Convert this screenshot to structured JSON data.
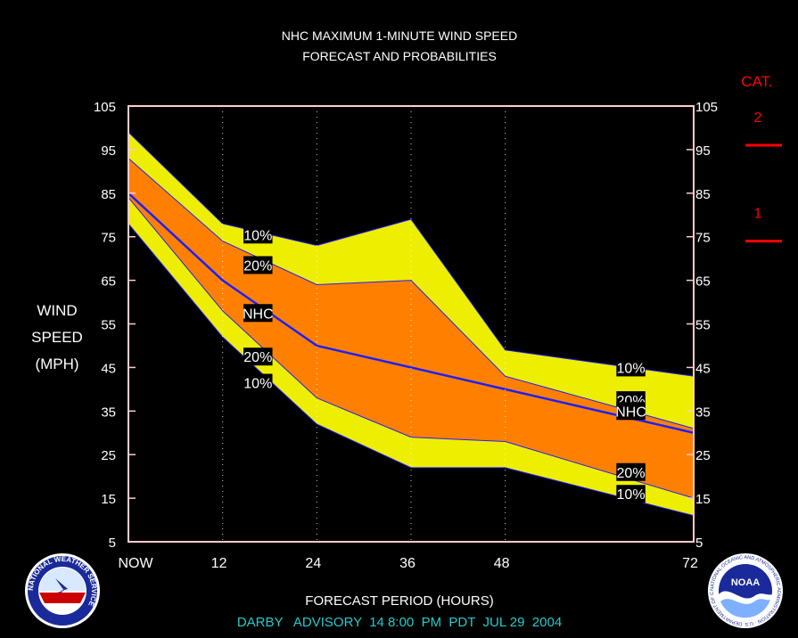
{
  "title_line1": "NHC MAXIMUM 1-MINUTE WIND SPEED",
  "title_line2": "FORECAST AND PROBABILITIES",
  "ylabel_lines": [
    "WIND",
    "SPEED",
    "(MPH)"
  ],
  "xlabel": "FORECAST PERIOD (HOURS)",
  "advisory": "DARBY   ADVISORY  14 8:00  PM  PDT  JUL 29  2004",
  "category_legend": {
    "header": "CAT.",
    "items": [
      {
        "label": "2",
        "threshold_mph": 96
      },
      {
        "label": "1",
        "threshold_mph": 74
      }
    ],
    "color": "#ff0000"
  },
  "colors": {
    "band_10": "#eeee00",
    "band_20": "#ff8000",
    "nhc_line": "#1f1fff",
    "frame": "#ffcccc",
    "grid": "#ffffff",
    "advisory_text": "#22cccc"
  },
  "chart_data": {
    "type": "area",
    "x": [
      0,
      12,
      24,
      36,
      48,
      72
    ],
    "xticks": [
      0,
      12,
      24,
      36,
      48,
      72
    ],
    "xtick_labels": [
      "NOW",
      "12",
      "24",
      "36",
      "48",
      "72"
    ],
    "xlim": [
      0,
      72
    ],
    "ylim": [
      5,
      105
    ],
    "yticks": [
      5,
      15,
      25,
      35,
      45,
      55,
      65,
      75,
      85,
      95,
      105
    ],
    "grid": "vertical dotted at forecast hours",
    "series": [
      {
        "name": "10%",
        "role": "upper-10",
        "values": [
          99,
          78,
          73,
          79,
          49,
          43
        ]
      },
      {
        "name": "20%",
        "role": "upper-20",
        "values": [
          93,
          74,
          64,
          65,
          43,
          31
        ]
      },
      {
        "name": "NHC",
        "role": "nhc",
        "values": [
          85,
          65,
          50,
          45,
          40,
          30
        ]
      },
      {
        "name": "20%",
        "role": "lower-20",
        "values": [
          84,
          58,
          38,
          29,
          28,
          15
        ]
      },
      {
        "name": "10%",
        "role": "lower-10",
        "values": [
          78,
          52,
          32,
          22,
          22,
          11
        ]
      }
    ],
    "annotations": [
      {
        "text": "10%",
        "x": 16.5,
        "y": 75.5
      },
      {
        "text": "20%",
        "x": 16.5,
        "y": 68.5
      },
      {
        "text": "NHC",
        "x": 16.5,
        "y": 57.5
      },
      {
        "text": "20%",
        "x": 16.5,
        "y": 47.5
      },
      {
        "text": "10%",
        "x": 16.5,
        "y": 41.5
      },
      {
        "text": "10%",
        "x": 64,
        "y": 45
      },
      {
        "text": "20%",
        "x": 64,
        "y": 37.5
      },
      {
        "text": "NHC",
        "x": 64,
        "y": 35
      },
      {
        "text": "20%",
        "x": 64,
        "y": 21
      },
      {
        "text": "10%",
        "x": 64,
        "y": 16
      }
    ]
  },
  "logos": {
    "left": {
      "text": "NATIONAL WEATHER SERVICE"
    },
    "right": {
      "center": "NOAA",
      "ring": "NATIONAL OCEANIC AND ATMOSPHERIC ADMINISTRATION · U.S. DEPARTMENT OF COMMERCE"
    }
  }
}
